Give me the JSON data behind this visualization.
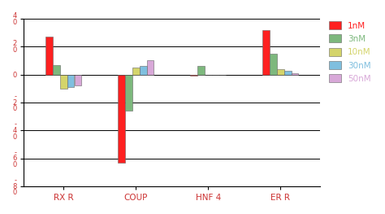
{
  "categories": [
    "RX R",
    "COUP",
    "HNF 4",
    "ER R"
  ],
  "series": [
    {
      "label": "1nM",
      "color": "#ff2020",
      "values": [
        27,
        -63,
        -1,
        32
      ]
    },
    {
      "label": "3nM",
      "color": "#7db87d",
      "values": [
        7,
        -26,
        6,
        15
      ]
    },
    {
      "label": "10nM",
      "color": "#d4d46a",
      "values": [
        -10,
        5,
        0,
        4
      ]
    },
    {
      "label": "30nM",
      "color": "#7fbfdf",
      "values": [
        -9,
        6,
        0,
        3
      ]
    },
    {
      "label": "50nM",
      "color": "#d8a8d8",
      "values": [
        -8,
        10,
        0,
        1
      ]
    }
  ],
  "ylim": [
    -80,
    40
  ],
  "yticks": [
    -80,
    -60,
    -40,
    -20,
    0,
    20,
    40
  ],
  "ytick_labels": [
    "-\n8\n0",
    "-\n6\n0",
    "-\n4\n0",
    "-\n2\n0",
    "0",
    "2\n0",
    "4\n0"
  ],
  "bar_width": 0.1,
  "legend_colors": [
    "#ff2020",
    "#7db87d",
    "#d4d46a",
    "#7fbfdf",
    "#d8a8d8"
  ],
  "legend_labels": [
    "1nM",
    "3nM",
    "10nM",
    "30nM",
    "50nM"
  ],
  "bg_color": "#ffffff",
  "grid_color": "#000000",
  "tick_label_color": "#cc3333",
  "spine_color": "#000000"
}
